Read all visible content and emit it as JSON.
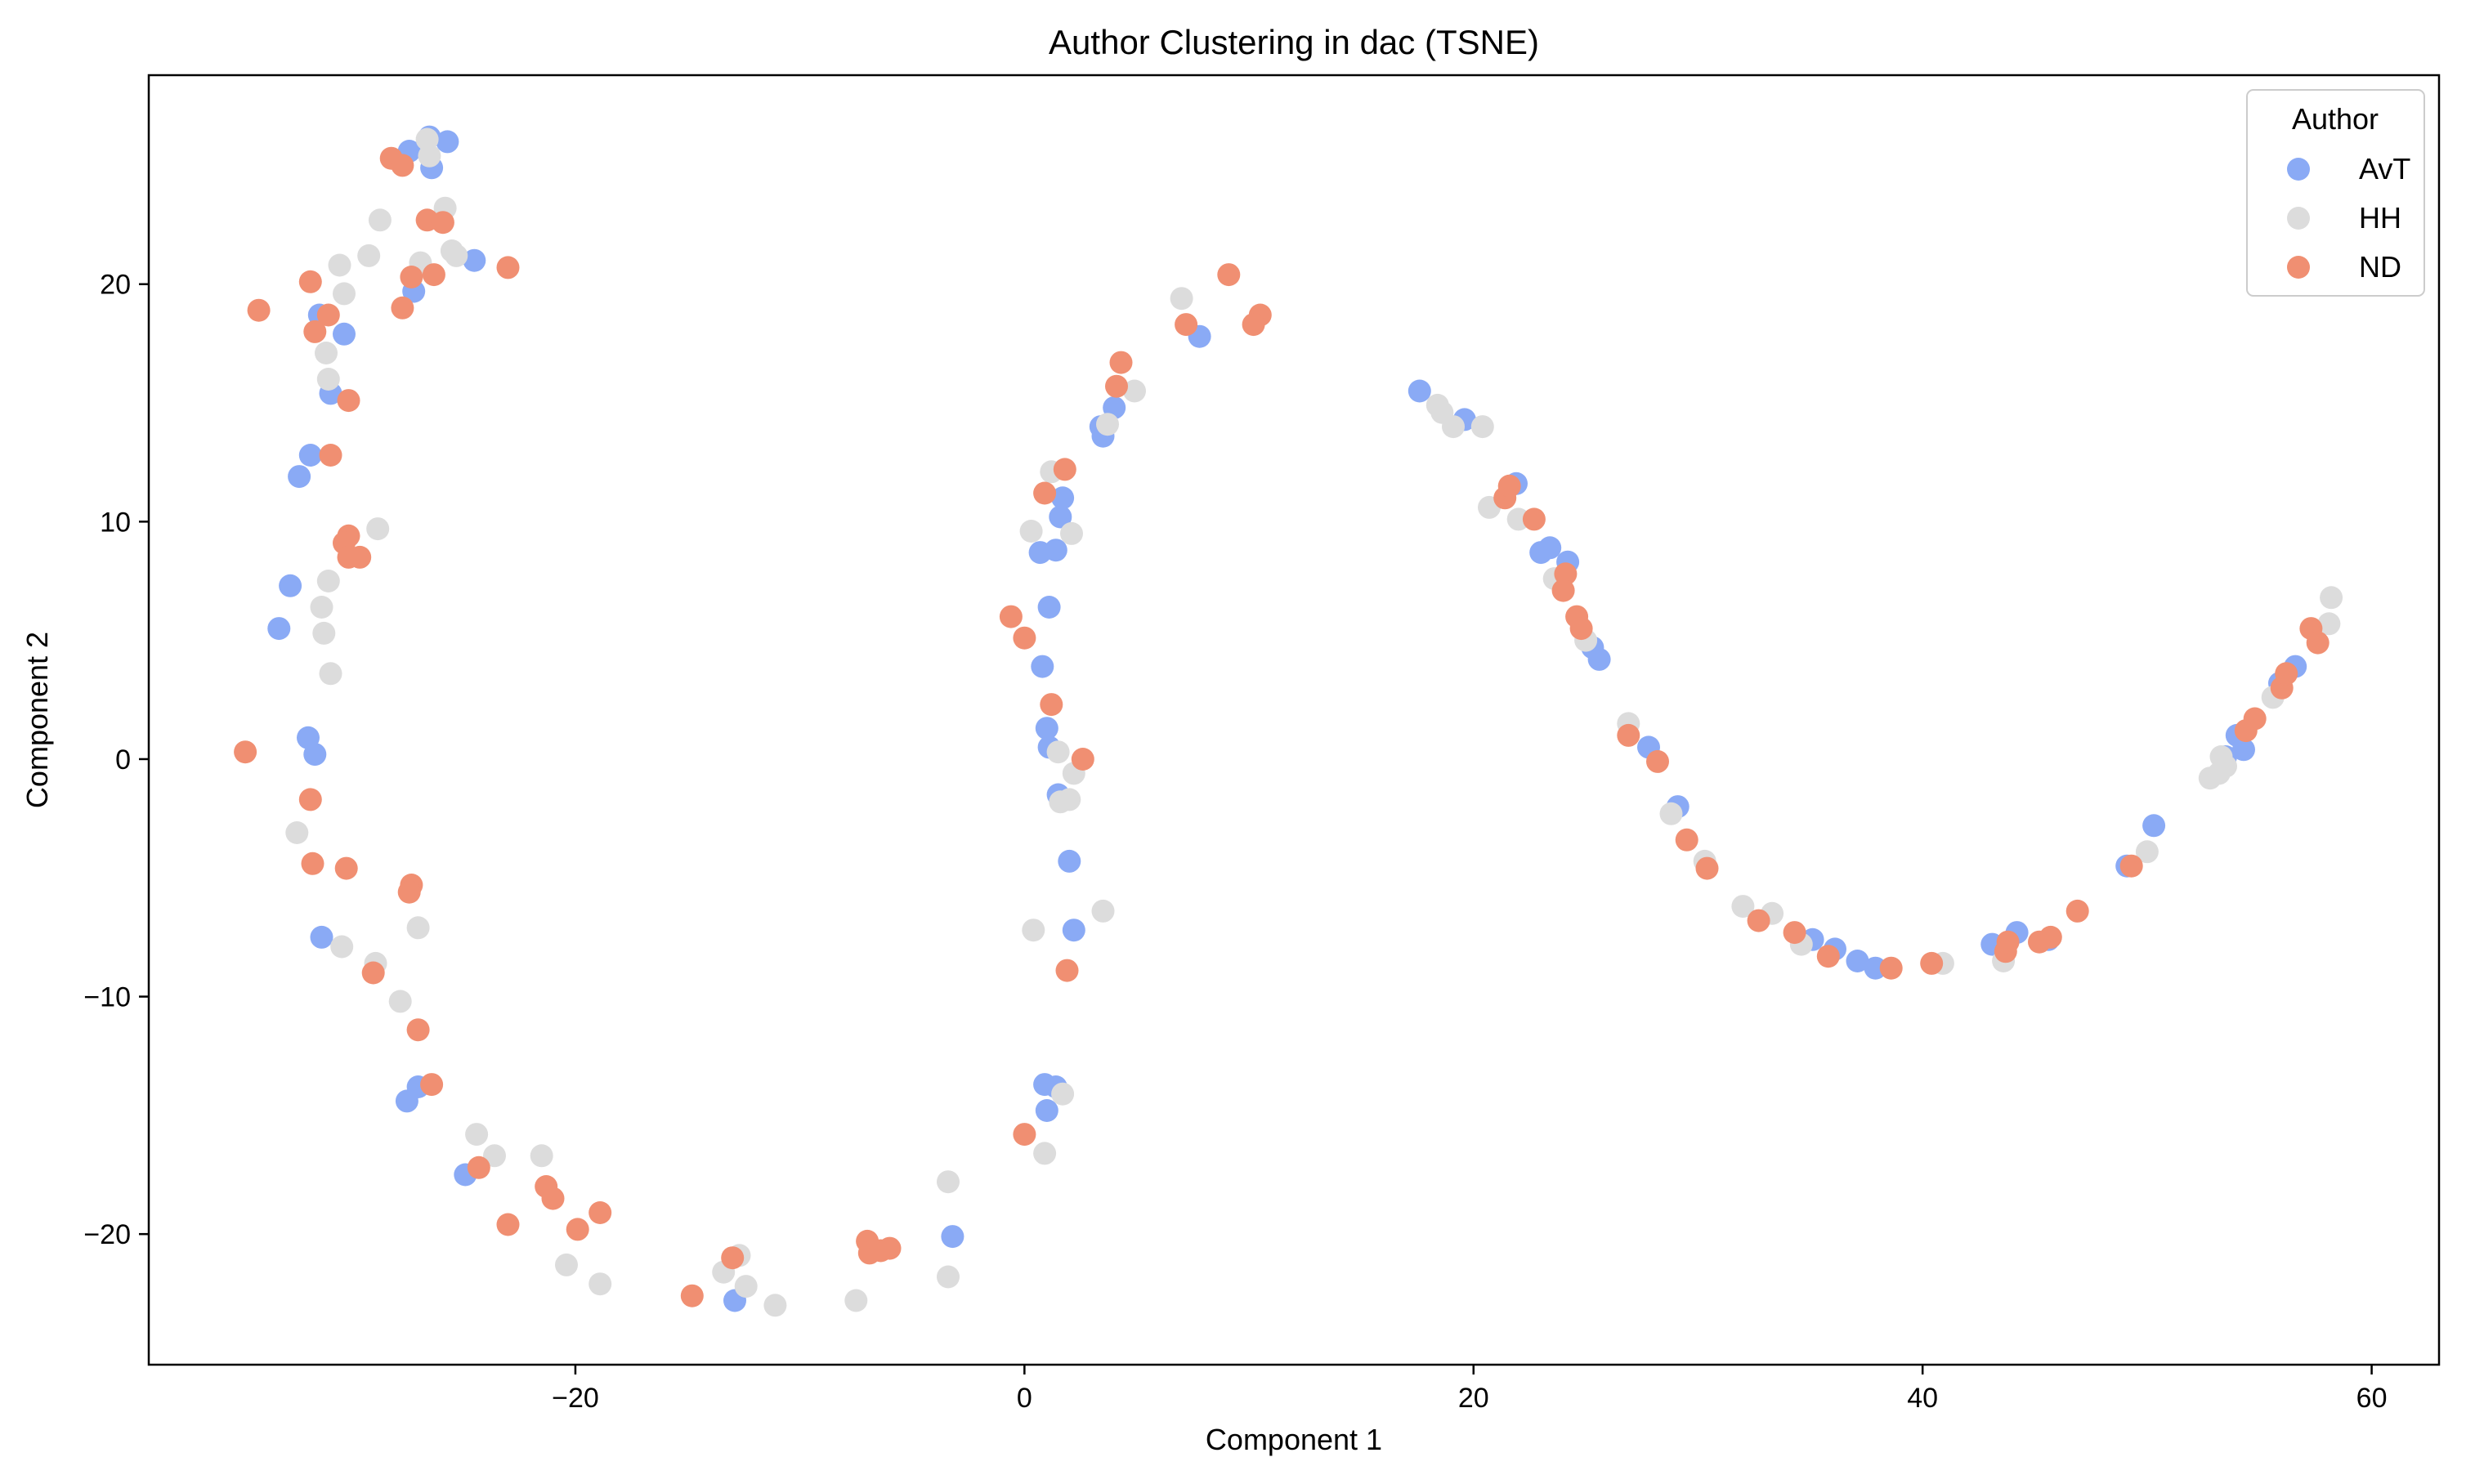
{
  "chart_data": {
    "type": "scatter",
    "title": "Author Clustering in dac (TSNE)",
    "xlabel": "Component 1",
    "ylabel": "Component 2",
    "xlim": [
      -39,
      63
    ],
    "ylim": [
      -25.5,
      28.8
    ],
    "x_ticks": [
      -20,
      0,
      20,
      40,
      60
    ],
    "y_ticks": [
      -20,
      -10,
      0,
      10,
      20
    ],
    "x_tick_labels": [
      "−20",
      "0",
      "20",
      "40",
      "60"
    ],
    "y_tick_labels": [
      "−20",
      "−10",
      "0",
      "10",
      "20"
    ],
    "grid": false,
    "legend": {
      "title": "Author",
      "placement": "top-right"
    },
    "series": [
      {
        "name": "AvT",
        "color": "#8aaaf5",
        "points": [
          [
            -26.5,
            26.2
          ],
          [
            -25.7,
            26.0
          ],
          [
            -27.4,
            25.6
          ],
          [
            -26.4,
            24.9
          ],
          [
            -24.5,
            21.0
          ],
          [
            -27.2,
            19.7
          ],
          [
            -31.4,
            18.7
          ],
          [
            -30.3,
            17.9
          ],
          [
            -30.9,
            15.4
          ],
          [
            -31.8,
            12.8
          ],
          [
            -32.3,
            11.9
          ],
          [
            -32.7,
            7.3
          ],
          [
            -33.2,
            5.5
          ],
          [
            -31.9,
            0.9
          ],
          [
            -31.6,
            0.2
          ],
          [
            -31.3,
            -7.5
          ],
          [
            -27.5,
            -14.4
          ],
          [
            -27.0,
            -13.8
          ],
          [
            -24.9,
            -17.5
          ],
          [
            -12.9,
            -22.8
          ],
          [
            -3.2,
            -20.1
          ],
          [
            7.8,
            17.8
          ],
          [
            4.0,
            14.8
          ],
          [
            3.4,
            14.0
          ],
          [
            3.5,
            13.6
          ],
          [
            1.7,
            11.0
          ],
          [
            1.6,
            10.2
          ],
          [
            0.7,
            8.7
          ],
          [
            1.4,
            8.8
          ],
          [
            1.1,
            6.4
          ],
          [
            0.8,
            3.9
          ],
          [
            1.0,
            1.3
          ],
          [
            1.1,
            0.5
          ],
          [
            1.5,
            -1.5
          ],
          [
            2.0,
            -4.3
          ],
          [
            2.2,
            -7.2
          ],
          [
            1.4,
            -13.8
          ],
          [
            0.9,
            -13.7
          ],
          [
            1.0,
            -14.8
          ],
          [
            17.6,
            15.5
          ],
          [
            19.6,
            14.3
          ],
          [
            21.9,
            11.6
          ],
          [
            23.0,
            8.7
          ],
          [
            23.4,
            8.9
          ],
          [
            24.2,
            8.3
          ],
          [
            25.3,
            4.7
          ],
          [
            25.6,
            4.2
          ],
          [
            27.8,
            0.5
          ],
          [
            29.1,
            -2.0
          ],
          [
            35.1,
            -7.6
          ],
          [
            36.1,
            -8.0
          ],
          [
            37.1,
            -8.5
          ],
          [
            37.9,
            -8.8
          ],
          [
            43.1,
            -7.8
          ],
          [
            44.2,
            -7.3
          ],
          [
            45.6,
            -7.6
          ],
          [
            49.1,
            -4.5
          ],
          [
            50.3,
            -2.8
          ],
          [
            53.5,
            0.1
          ],
          [
            54.0,
            1.0
          ],
          [
            54.3,
            0.4
          ],
          [
            55.9,
            3.2
          ],
          [
            56.6,
            3.9
          ]
        ]
      },
      {
        "name": "HH",
        "color": "#dcdcdc",
        "points": [
          [
            -26.6,
            26.1
          ],
          [
            -26.5,
            25.4
          ],
          [
            -25.8,
            23.2
          ],
          [
            -28.7,
            22.7
          ],
          [
            -25.5,
            21.4
          ],
          [
            -25.3,
            21.2
          ],
          [
            -29.2,
            21.2
          ],
          [
            -26.9,
            20.9
          ],
          [
            -30.5,
            20.8
          ],
          [
            -30.3,
            19.6
          ],
          [
            -31.1,
            17.1
          ],
          [
            -31.0,
            16.0
          ],
          [
            -28.8,
            9.7
          ],
          [
            -31.0,
            7.5
          ],
          [
            -31.3,
            6.4
          ],
          [
            -31.2,
            5.3
          ],
          [
            -30.9,
            3.6
          ],
          [
            -32.4,
            -3.1
          ],
          [
            -30.4,
            -7.9
          ],
          [
            -28.9,
            -8.6
          ],
          [
            -27.8,
            -10.2
          ],
          [
            -27.0,
            -7.1
          ],
          [
            -24.4,
            -15.8
          ],
          [
            -23.6,
            -16.7
          ],
          [
            -21.5,
            -16.7
          ],
          [
            -20.4,
            -21.3
          ],
          [
            -18.9,
            -22.1
          ],
          [
            -13.4,
            -21.6
          ],
          [
            -12.7,
            -20.9
          ],
          [
            -12.4,
            -22.2
          ],
          [
            -11.1,
            -23.0
          ],
          [
            -7.5,
            -22.8
          ],
          [
            -3.4,
            -17.8
          ],
          [
            -3.4,
            -21.8
          ],
          [
            7.0,
            19.4
          ],
          [
            4.9,
            15.5
          ],
          [
            3.7,
            14.1
          ],
          [
            1.2,
            12.1
          ],
          [
            2.1,
            9.5
          ],
          [
            0.3,
            9.6
          ],
          [
            1.5,
            0.3
          ],
          [
            2.2,
            -0.6
          ],
          [
            1.6,
            -1.8
          ],
          [
            2.0,
            -1.7
          ],
          [
            3.5,
            -6.4
          ],
          [
            0.4,
            -7.2
          ],
          [
            1.7,
            -14.1
          ],
          [
            0.9,
            -16.6
          ],
          [
            18.4,
            14.9
          ],
          [
            18.6,
            14.6
          ],
          [
            19.1,
            14.0
          ],
          [
            20.4,
            14.0
          ],
          [
            20.7,
            10.6
          ],
          [
            22.0,
            10.1
          ],
          [
            23.6,
            7.6
          ],
          [
            25.0,
            5.0
          ],
          [
            26.9,
            1.5
          ],
          [
            28.8,
            -2.3
          ],
          [
            30.3,
            -4.3
          ],
          [
            32.0,
            -6.2
          ],
          [
            33.3,
            -6.5
          ],
          [
            34.6,
            -7.8
          ],
          [
            40.9,
            -8.6
          ],
          [
            43.6,
            -8.5
          ],
          [
            52.8,
            -0.8
          ],
          [
            53.2,
            -0.6
          ],
          [
            53.5,
            -0.3
          ],
          [
            53.3,
            0.1
          ],
          [
            50.0,
            -3.9
          ],
          [
            55.6,
            2.6
          ],
          [
            58.1,
            5.7
          ],
          [
            58.2,
            6.8
          ]
        ]
      },
      {
        "name": "ND",
        "color": "#f08f72",
        "points": [
          [
            -28.2,
            25.3
          ],
          [
            -27.7,
            25.0
          ],
          [
            -26.6,
            22.7
          ],
          [
            -25.9,
            22.6
          ],
          [
            -23.0,
            20.7
          ],
          [
            -27.3,
            20.3
          ],
          [
            -26.3,
            20.4
          ],
          [
            -27.7,
            19.0
          ],
          [
            -34.1,
            18.9
          ],
          [
            -31.8,
            20.1
          ],
          [
            -31.6,
            18.0
          ],
          [
            -31.0,
            18.7
          ],
          [
            -30.1,
            15.1
          ],
          [
            -30.9,
            12.8
          ],
          [
            -30.1,
            9.4
          ],
          [
            -30.3,
            9.1
          ],
          [
            -30.1,
            8.5
          ],
          [
            -29.6,
            8.5
          ],
          [
            -34.7,
            0.3
          ],
          [
            -31.8,
            -1.7
          ],
          [
            -31.7,
            -4.4
          ],
          [
            -30.2,
            -4.6
          ],
          [
            -27.3,
            -5.3
          ],
          [
            -27.4,
            -5.6
          ],
          [
            -29.0,
            -9.0
          ],
          [
            -27.0,
            -11.4
          ],
          [
            -26.4,
            -13.7
          ],
          [
            -24.3,
            -17.2
          ],
          [
            -23.0,
            -19.6
          ],
          [
            -21.3,
            -18.0
          ],
          [
            -21.0,
            -18.5
          ],
          [
            -19.9,
            -19.8
          ],
          [
            -18.9,
            -19.1
          ],
          [
            -13.0,
            -21.0
          ],
          [
            -14.8,
            -22.6
          ],
          [
            -7.0,
            -20.3
          ],
          [
            -6.9,
            -20.8
          ],
          [
            -6.4,
            -20.7
          ],
          [
            -6.0,
            -20.6
          ],
          [
            9.1,
            20.4
          ],
          [
            10.5,
            18.7
          ],
          [
            10.2,
            18.3
          ],
          [
            7.2,
            18.3
          ],
          [
            4.3,
            16.7
          ],
          [
            4.1,
            15.7
          ],
          [
            1.8,
            12.2
          ],
          [
            0.9,
            11.2
          ],
          [
            -0.6,
            6.0
          ],
          [
            0.0,
            5.1
          ],
          [
            1.2,
            2.3
          ],
          [
            2.6,
            0.0
          ],
          [
            1.9,
            -8.9
          ],
          [
            0.0,
            -15.8
          ],
          [
            21.4,
            11.0
          ],
          [
            21.6,
            11.5
          ],
          [
            22.7,
            10.1
          ],
          [
            24.1,
            7.8
          ],
          [
            24.0,
            7.1
          ],
          [
            24.6,
            6.0
          ],
          [
            24.8,
            5.5
          ],
          [
            26.9,
            1.0
          ],
          [
            28.2,
            -0.1
          ],
          [
            29.5,
            -3.4
          ],
          [
            30.4,
            -4.6
          ],
          [
            32.7,
            -6.8
          ],
          [
            34.3,
            -7.3
          ],
          [
            35.8,
            -8.3
          ],
          [
            38.6,
            -8.8
          ],
          [
            40.4,
            -8.6
          ],
          [
            43.7,
            -8.1
          ],
          [
            43.8,
            -7.7
          ],
          [
            45.2,
            -7.7
          ],
          [
            45.7,
            -7.5
          ],
          [
            46.9,
            -6.4
          ],
          [
            49.3,
            -4.5
          ],
          [
            54.4,
            1.2
          ],
          [
            54.8,
            1.7
          ],
          [
            56.0,
            3.0
          ],
          [
            56.2,
            3.6
          ],
          [
            57.3,
            5.5
          ],
          [
            57.6,
            4.9
          ]
        ]
      }
    ]
  }
}
